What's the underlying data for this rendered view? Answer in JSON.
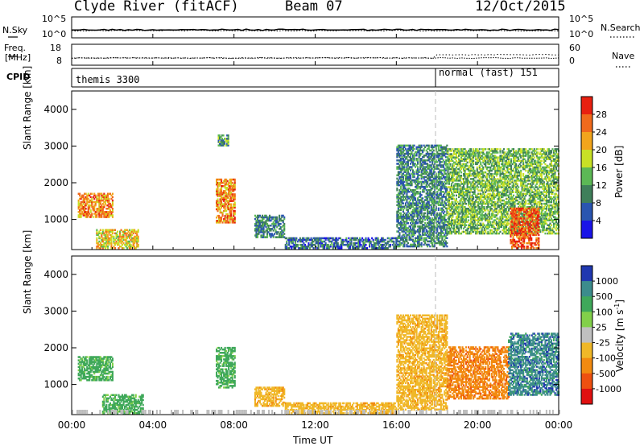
{
  "header": {
    "station": "Clyde River (fitACF)",
    "beam": "Beam 07",
    "date": "12/Oct/2015"
  },
  "top_panels": {
    "nsky_label": "N.Sky",
    "nsearch_label": "N.Search",
    "nsky_ticks": [
      "10^5",
      "10^0"
    ],
    "nsearch_ticks": [
      "10^5",
      "10^0"
    ],
    "freq_label_1": "Freq.",
    "freq_label_2": "[MHz]",
    "freq_ticks": [
      "18",
      "8"
    ],
    "nave_label": "Nave",
    "nave_ticks": [
      "60",
      "0"
    ],
    "cpid_label": "CPID",
    "cpid_segments": [
      "themis 3300",
      "normal (fast) 151"
    ]
  },
  "x_axis": {
    "title": "Time UT",
    "ticks": [
      "00:00",
      "04:00",
      "08:00",
      "12:00",
      "16:00",
      "20:00",
      "00:00"
    ]
  },
  "colors": {
    "mode_change_line": "#bbbbbb",
    "ground_scatter": "#bdbdbd"
  },
  "chart_data": [
    {
      "type": "heatmap",
      "title": "Power",
      "xlabel": "Time UT",
      "ylabel": "Slant Range [km]",
      "xlim": [
        0,
        24
      ],
      "ylim": [
        180,
        4500
      ],
      "yticks": [
        "1000",
        "2000",
        "3000",
        "4000"
      ],
      "colorbar": {
        "label": "Power [dB]",
        "ticks": [
          "4",
          "8",
          "12",
          "16",
          "20",
          "24",
          "28"
        ],
        "colors": [
          "#1a14e8",
          "#2a55b0",
          "#3f7f5a",
          "#5cb855",
          "#c8e026",
          "#f2a51c",
          "#f06a1c",
          "#e82010"
        ]
      },
      "echo_regions": [
        {
          "t": [
            0.3,
            2.0
          ],
          "r": [
            1050,
            1700
          ],
          "level": 24
        },
        {
          "t": [
            1.2,
            3.3
          ],
          "r": [
            200,
            700
          ],
          "level": 20
        },
        {
          "t": [
            7.1,
            8.0
          ],
          "r": [
            900,
            2100
          ],
          "level": 24
        },
        {
          "t": [
            7.2,
            7.7
          ],
          "r": [
            3000,
            3300
          ],
          "level": 12
        },
        {
          "t": [
            9.0,
            10.5
          ],
          "r": [
            500,
            1100
          ],
          "level": 10
        },
        {
          "t": [
            10.5,
            16.0
          ],
          "r": [
            200,
            500
          ],
          "level": 8
        },
        {
          "t": [
            16.0,
            18.5
          ],
          "r": [
            250,
            3000
          ],
          "level": 10
        },
        {
          "t": [
            18.5,
            24.0
          ],
          "r": [
            600,
            2900
          ],
          "level": 14
        },
        {
          "t": [
            21.6,
            23.0
          ],
          "r": [
            200,
            1300
          ],
          "level": 28
        }
      ]
    },
    {
      "type": "heatmap",
      "title": "Velocity",
      "xlabel": "Time UT",
      "ylabel": "Slant Range [km]",
      "xlim": [
        0,
        24
      ],
      "ylim": [
        180,
        4500
      ],
      "yticks": [
        "1000",
        "2000",
        "3000",
        "4000"
      ],
      "colorbar": {
        "label": "Velocity [m s-1]",
        "label_main": "Velocity [m s",
        "label_exp": "-1",
        "label_tail": "]",
        "ticks": [
          "1000",
          "500",
          "100",
          "25",
          "-25",
          "-100",
          "-500",
          "-1000"
        ],
        "colors": [
          "#2038b0",
          "#3c8c8c",
          "#3fa85a",
          "#82d04a",
          "#c0c0c0",
          "#f0b828",
          "#f28a10",
          "#ee5010",
          "#e01010"
        ]
      },
      "echo_regions": [
        {
          "t": [
            0.3,
            2.0
          ],
          "r": [
            1100,
            1750
          ],
          "level": 100
        },
        {
          "t": [
            1.5,
            3.5
          ],
          "r": [
            200,
            700
          ],
          "level": 100
        },
        {
          "t": [
            7.1,
            8.0
          ],
          "r": [
            900,
            2000
          ],
          "level": 100
        },
        {
          "t": [
            9.0,
            10.5
          ],
          "r": [
            400,
            900
          ],
          "level": -100
        },
        {
          "t": [
            10.5,
            16.0
          ],
          "r": [
            200,
            500
          ],
          "level": -100
        },
        {
          "t": [
            16.0,
            18.5
          ],
          "r": [
            300,
            2900
          ],
          "level": -100
        },
        {
          "t": [
            18.5,
            21.5
          ],
          "r": [
            600,
            2000
          ],
          "level": -500
        },
        {
          "t": [
            21.5,
            24.0
          ],
          "r": [
            700,
            2400
          ],
          "level": 500
        }
      ]
    }
  ]
}
